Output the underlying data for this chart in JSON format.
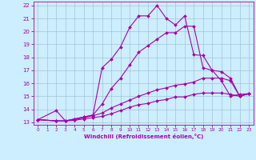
{
  "xlabel": "Windchill (Refroidissement éolien,°C)",
  "xlim": [
    -0.5,
    23.5
  ],
  "ylim": [
    12.8,
    22.3
  ],
  "yticks": [
    13,
    14,
    15,
    16,
    17,
    18,
    19,
    20,
    21,
    22
  ],
  "xticks": [
    0,
    1,
    2,
    3,
    4,
    5,
    6,
    7,
    8,
    9,
    10,
    11,
    12,
    13,
    14,
    15,
    16,
    17,
    18,
    19,
    20,
    21,
    22,
    23
  ],
  "background_color": "#cceeff",
  "line_color": "#aa00aa",
  "grid_color": "#99bbcc",
  "lines": [
    {
      "x": [
        0,
        2,
        3,
        4,
        5,
        6,
        7,
        8,
        9,
        10,
        11,
        12,
        13,
        14,
        15,
        16,
        17,
        18,
        19,
        20,
        21,
        22,
        23
      ],
      "y": [
        13.2,
        13.9,
        13.1,
        13.25,
        13.4,
        13.55,
        17.2,
        17.85,
        18.8,
        20.3,
        21.2,
        21.2,
        22.0,
        21.0,
        20.5,
        21.2,
        18.2,
        18.15,
        17.0,
        16.2,
        15.0,
        15.15,
        15.2
      ]
    },
    {
      "x": [
        0,
        2,
        3,
        4,
        5,
        6,
        7,
        8,
        9,
        10,
        11,
        12,
        13,
        14,
        15,
        16,
        17,
        18,
        19,
        20,
        21,
        22,
        23
      ],
      "y": [
        13.2,
        13.1,
        13.1,
        13.25,
        13.4,
        13.55,
        14.4,
        15.6,
        16.4,
        17.4,
        18.4,
        18.9,
        19.4,
        19.9,
        19.9,
        20.4,
        20.4,
        17.2,
        17.0,
        16.9,
        16.4,
        15.0,
        15.2
      ]
    },
    {
      "x": [
        0,
        2,
        3,
        4,
        5,
        6,
        7,
        8,
        9,
        10,
        11,
        12,
        13,
        14,
        15,
        16,
        17,
        18,
        19,
        20,
        21,
        22,
        23
      ],
      "y": [
        13.2,
        13.1,
        13.1,
        13.2,
        13.35,
        13.5,
        13.7,
        14.1,
        14.4,
        14.7,
        15.0,
        15.25,
        15.5,
        15.65,
        15.85,
        15.95,
        16.1,
        16.4,
        16.4,
        16.4,
        16.2,
        15.0,
        15.2
      ]
    },
    {
      "x": [
        0,
        2,
        3,
        4,
        5,
        6,
        7,
        8,
        9,
        10,
        11,
        12,
        13,
        14,
        15,
        16,
        17,
        18,
        19,
        20,
        21,
        22,
        23
      ],
      "y": [
        13.2,
        13.1,
        13.1,
        13.15,
        13.25,
        13.35,
        13.45,
        13.65,
        13.9,
        14.15,
        14.35,
        14.45,
        14.65,
        14.75,
        14.95,
        14.95,
        15.15,
        15.25,
        15.25,
        15.25,
        15.15,
        15.0,
        15.2
      ]
    }
  ]
}
